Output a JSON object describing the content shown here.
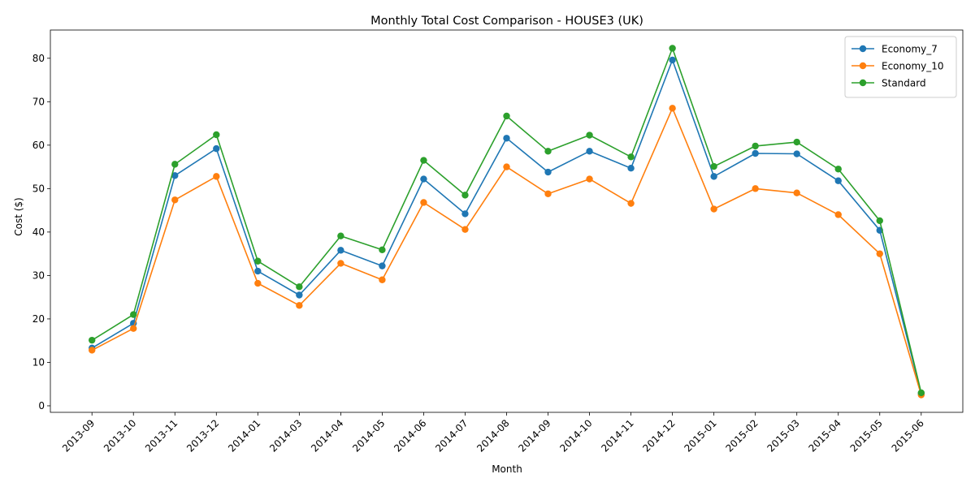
{
  "chart_data": {
    "type": "line",
    "title": "Monthly Total Cost Comparison - HOUSE3 (UK)",
    "xlabel": "Month",
    "ylabel": "Cost ($)",
    "ylim": [
      -1.5,
      86.5
    ],
    "yticks": [
      0,
      10,
      20,
      30,
      40,
      50,
      60,
      70,
      80
    ],
    "grid": false,
    "legend_position": "top-right",
    "categories": [
      "2013-09",
      "2013-10",
      "2013-11",
      "2013-12",
      "2014-01",
      "2014-03",
      "2014-04",
      "2014-05",
      "2014-06",
      "2014-07",
      "2014-08",
      "2014-09",
      "2014-10",
      "2014-11",
      "2014-12",
      "2015-01",
      "2015-02",
      "2015-03",
      "2015-04",
      "2015-05",
      "2015-06"
    ],
    "series": [
      {
        "name": "Economy_7",
        "color": "#1f77b4",
        "values": [
          13.3,
          19.0,
          53.0,
          59.2,
          31.0,
          25.5,
          35.8,
          32.2,
          52.2,
          44.2,
          61.6,
          53.8,
          58.6,
          54.7,
          79.6,
          52.8,
          58.1,
          58.0,
          51.8,
          40.4,
          2.8
        ]
      },
      {
        "name": "Economy_10",
        "color": "#ff7f0e",
        "values": [
          12.8,
          17.8,
          47.4,
          52.8,
          28.2,
          23.1,
          32.8,
          29.0,
          46.8,
          40.6,
          55.0,
          48.8,
          52.2,
          46.6,
          68.5,
          45.3,
          50.0,
          49.0,
          44.0,
          35.0,
          2.5
        ]
      },
      {
        "name": "Standard",
        "color": "#2ca02c",
        "values": [
          15.1,
          21.0,
          55.6,
          62.4,
          33.3,
          27.4,
          39.1,
          35.9,
          56.5,
          48.5,
          66.7,
          58.6,
          62.3,
          57.3,
          82.3,
          55.1,
          59.8,
          60.7,
          54.5,
          42.6,
          3.0
        ]
      }
    ]
  }
}
